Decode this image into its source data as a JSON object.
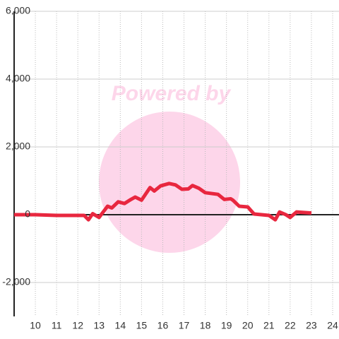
{
  "chart_data": {
    "type": "line",
    "watermark": "Powered by",
    "x": [
      9,
      10,
      11,
      12,
      12.3,
      12.5,
      12.7,
      13,
      13.4,
      13.6,
      13.9,
      14.2,
      14.5,
      14.7,
      15,
      15.4,
      15.6,
      15.9,
      16.3,
      16.6,
      16.9,
      17.2,
      17.4,
      17.7,
      18,
      18.6,
      18.9,
      19.2,
      19.3,
      19.6,
      20,
      20.3,
      21,
      21.3,
      21.5,
      21.8,
      22,
      22.3,
      23
    ],
    "series": [
      {
        "color": "#e8273f",
        "values": [
          0,
          0,
          -20,
          -20,
          -20,
          -150,
          30,
          -80,
          250,
          200,
          380,
          330,
          450,
          520,
          430,
          800,
          700,
          850,
          920,
          880,
          750,
          760,
          860,
          780,
          650,
          600,
          450,
          470,
          430,
          250,
          230,
          20,
          -20,
          -150,
          80,
          0,
          -80,
          80,
          50
        ]
      }
    ],
    "xlim": [
      9,
      24.3
    ],
    "xticks": [
      10,
      11,
      12,
      13,
      14,
      15,
      16,
      17,
      18,
      19,
      20,
      21,
      22,
      23,
      24
    ],
    "ylim": [
      -3000,
      6000
    ],
    "yticks": [
      {
        "value": -2000,
        "label": "-2,000"
      },
      0,
      {
        "value": 2000,
        "label": "2,000"
      },
      {
        "value": 4000,
        "label": "4,000"
      },
      {
        "value": 6000,
        "label": "6,000"
      }
    ],
    "grid": true
  }
}
